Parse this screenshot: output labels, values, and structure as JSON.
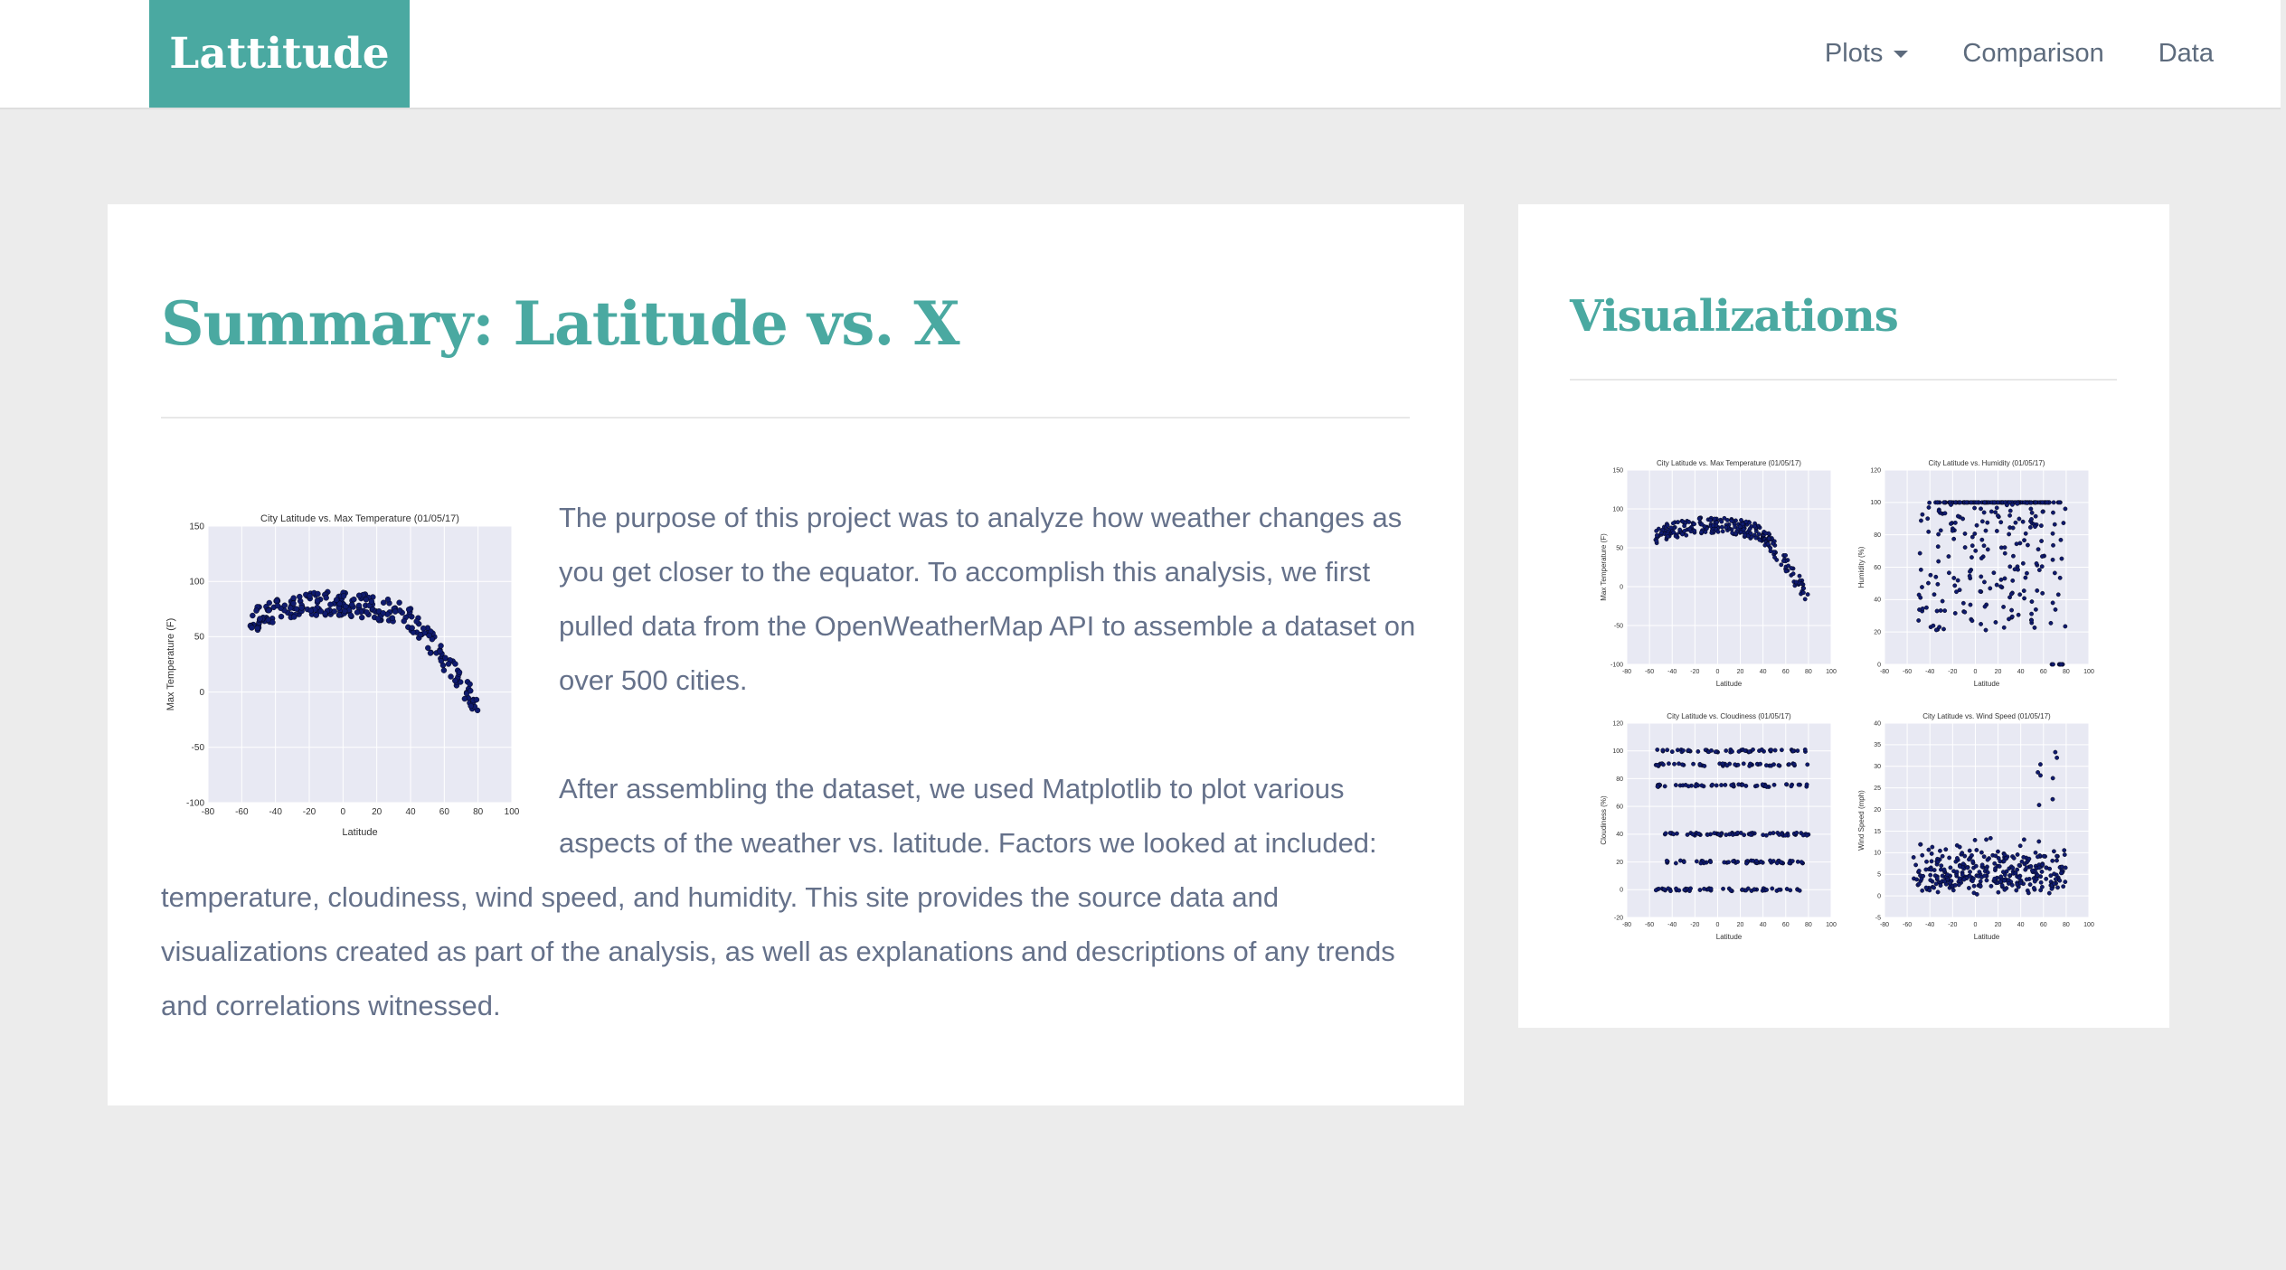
{
  "navbar": {
    "brand": "Lattitude",
    "items": [
      {
        "label": "Plots",
        "dropdown": true
      },
      {
        "label": "Comparison"
      },
      {
        "label": "Data"
      }
    ]
  },
  "summary": {
    "title": "Summary: Latitude vs. X",
    "paragraph1": "The purpose of this project was to analyze how weather changes as you get closer to the equator. To accomplish this analysis, we first pulled data from the OpenWeatherMap API to assemble a dataset on over 500 cities.",
    "paragraph2_start": "After assembling the dataset, we used Matplotlib to plot various aspects of the weather vs. latitude. Factors we looked at included:",
    "paragraph2_end": "temperature, cloudiness, wind speed, and humidity. This site provides the source data and visualizations created as part of the analysis, as well as explanations and descriptions of any trends and correlations witnessed."
  },
  "visualizations": {
    "title": "Visualizations"
  },
  "colors": {
    "accent": "#4aa9a1",
    "text": "#65718a",
    "point": "#0f1a6e",
    "plot_bg": "#e8e9f3"
  },
  "chart_data": [
    {
      "type": "scatter",
      "title": "City Latitude vs. Max Temperature (01/05/17)",
      "xlabel": "Latitude",
      "ylabel": "Max Temperature (F)",
      "xlim": [
        -80,
        100
      ],
      "ylim": [
        -100,
        150
      ],
      "xticks": [
        -80,
        -60,
        -40,
        -20,
        0,
        20,
        40,
        60,
        80,
        100
      ],
      "yticks": [
        -100,
        -50,
        0,
        50,
        100,
        150
      ],
      "pattern": "temperature",
      "grid": true
    },
    {
      "type": "scatter",
      "title": "City Latitude vs. Max Temperature (01/05/17)",
      "xlabel": "Latitude",
      "ylabel": "Max Temperature (F)",
      "xlim": [
        -80,
        100
      ],
      "ylim": [
        -100,
        150
      ],
      "xticks": [
        -80,
        -60,
        -40,
        -20,
        0,
        20,
        40,
        60,
        80,
        100
      ],
      "yticks": [
        -100,
        -50,
        0,
        50,
        100,
        150
      ],
      "pattern": "temperature",
      "grid": true
    },
    {
      "type": "scatter",
      "title": "City Latitude vs. Humidity (01/05/17)",
      "xlabel": "Latitude",
      "ylabel": "Humidity (%)",
      "xlim": [
        -80,
        100
      ],
      "ylim": [
        0,
        120
      ],
      "xticks": [
        -80,
        -60,
        -40,
        -20,
        0,
        20,
        40,
        60,
        80,
        100
      ],
      "yticks": [
        0,
        20,
        40,
        60,
        80,
        100,
        120
      ],
      "pattern": "humidity",
      "grid": true
    },
    {
      "type": "scatter",
      "title": "City Latitude vs. Cloudiness (01/05/17)",
      "xlabel": "Latitude",
      "ylabel": "Cloudiness (%)",
      "xlim": [
        -80,
        100
      ],
      "ylim": [
        -20,
        120
      ],
      "xticks": [
        -80,
        -60,
        -40,
        -20,
        0,
        20,
        40,
        60,
        80,
        100
      ],
      "yticks": [
        -20,
        0,
        20,
        40,
        60,
        80,
        100,
        120
      ],
      "pattern": "cloudiness",
      "grid": true
    },
    {
      "type": "scatter",
      "title": "City Latitude vs. Wind Speed (01/05/17)",
      "xlabel": "Latitude",
      "ylabel": "Wind Speed (mph)",
      "xlim": [
        -80,
        100
      ],
      "ylim": [
        -5,
        40
      ],
      "xticks": [
        -80,
        -60,
        -40,
        -20,
        0,
        20,
        40,
        60,
        80,
        100
      ],
      "yticks": [
        -5,
        0,
        5,
        10,
        15,
        20,
        25,
        30,
        35,
        40
      ],
      "pattern": "wind",
      "grid": true
    }
  ]
}
